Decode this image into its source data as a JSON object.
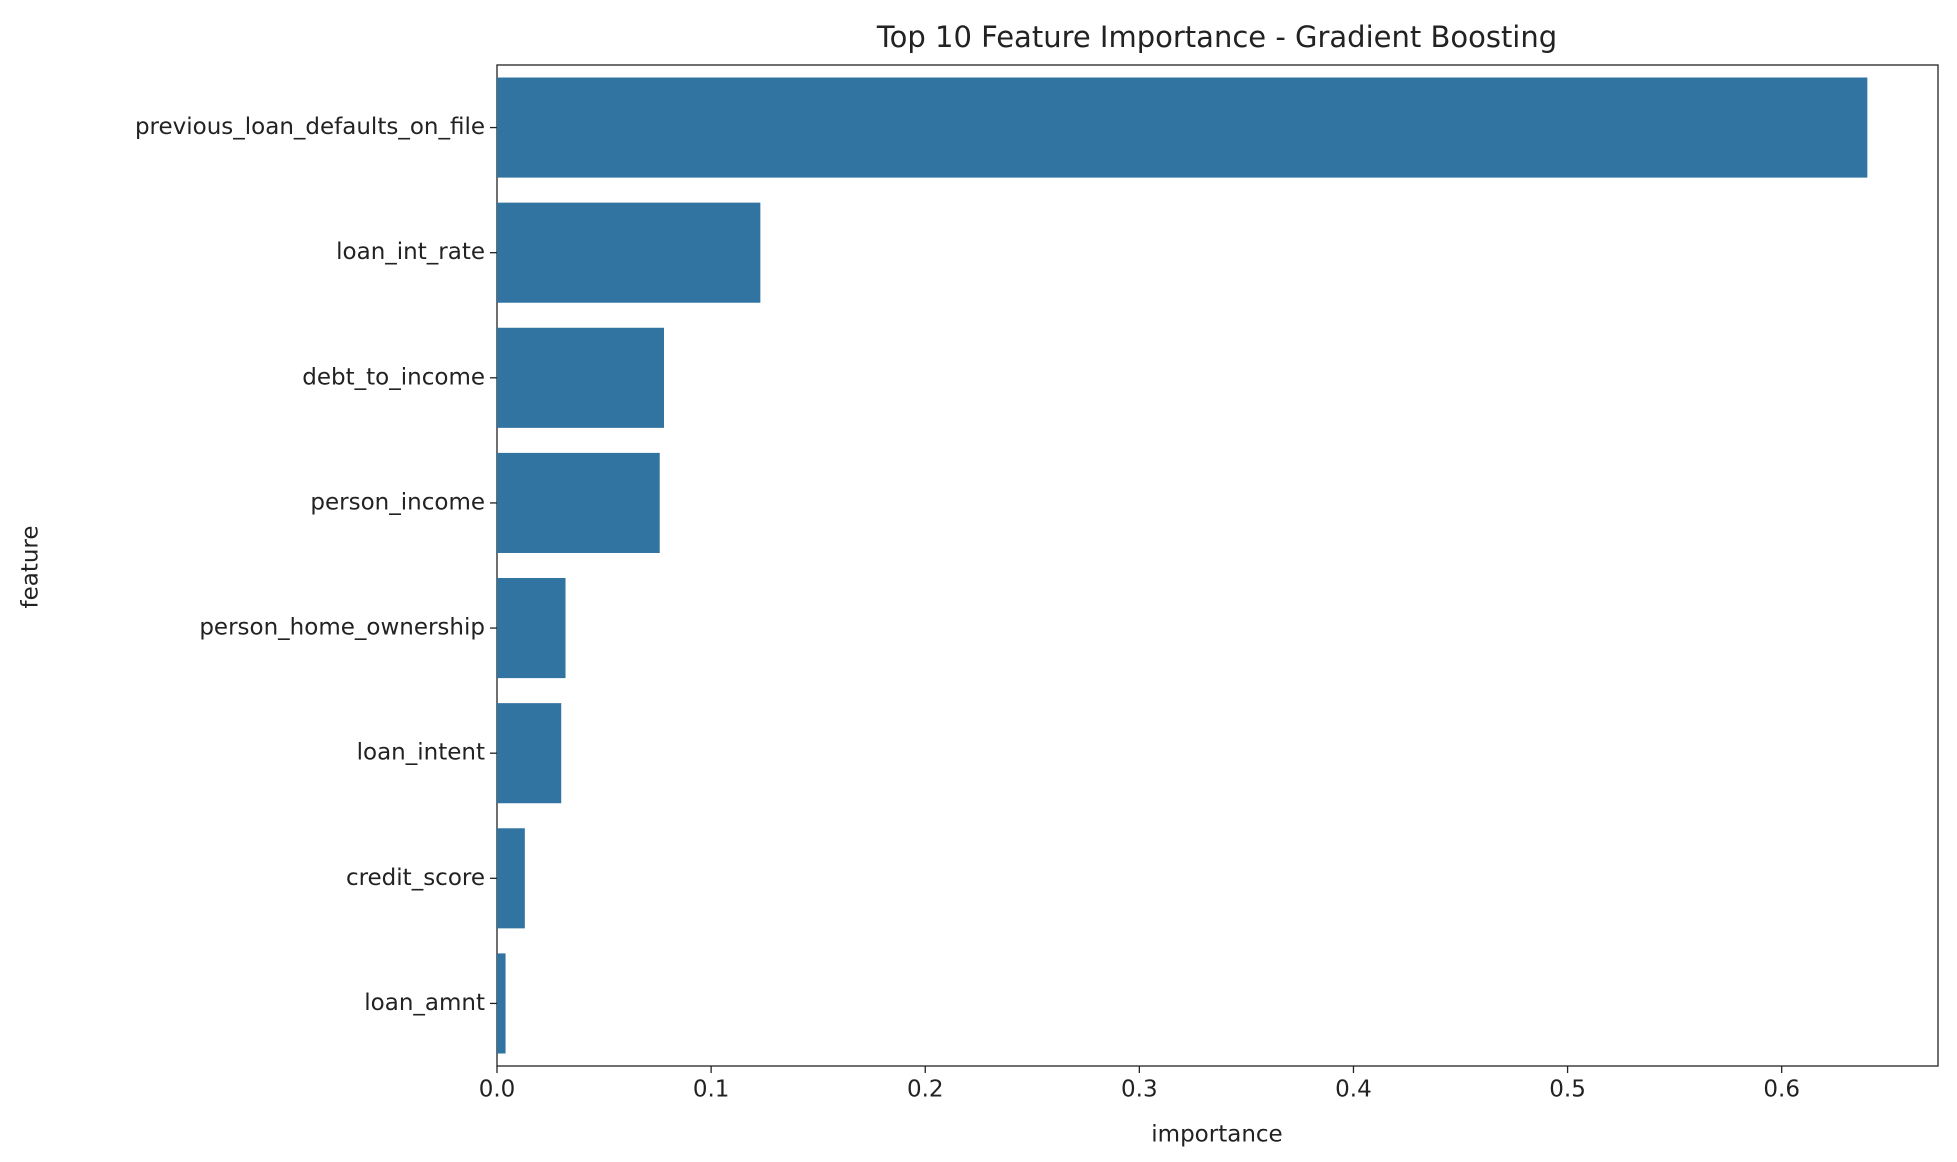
{
  "chart_data": {
    "type": "bar",
    "orientation": "horizontal",
    "title": "Top 10 Feature Importance - Gradient Boosting",
    "xlabel": "importance",
    "ylabel": "feature",
    "categories": [
      "previous_loan_defaults_on_file",
      "loan_int_rate",
      "debt_to_income",
      "person_income",
      "person_home_ownership",
      "loan_intent",
      "credit_score",
      "loan_amnt"
    ],
    "values": [
      0.64,
      0.123,
      0.078,
      0.076,
      0.032,
      0.03,
      0.013,
      0.004
    ],
    "color": "#3274a1",
    "xlim": [
      0,
      0.673
    ],
    "xticks": [
      {
        "value": 0,
        "label": "0.0"
      },
      0.1,
      0.2,
      0.3,
      0.4,
      0.5,
      0.6
    ]
  }
}
